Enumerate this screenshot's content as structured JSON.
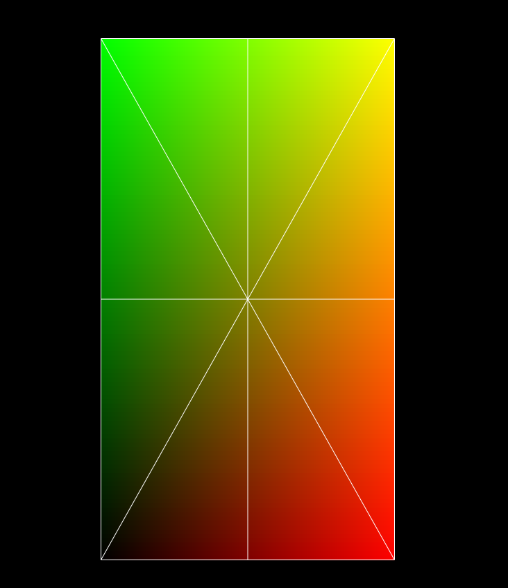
{
  "scene": {
    "background_color": "#000000",
    "wireframe_color": "#ffffff",
    "corner_colors": {
      "top_left": "#00ff00",
      "top_right": "#ffff00",
      "bottom_left": "#000000",
      "bottom_right": "#ff0000"
    },
    "grid_subdivisions": 2
  }
}
